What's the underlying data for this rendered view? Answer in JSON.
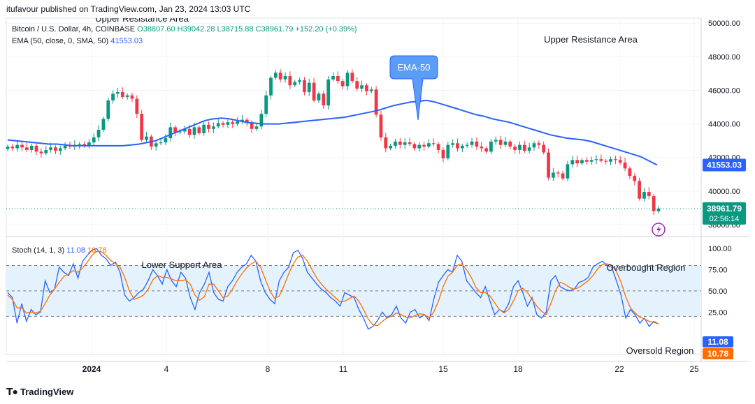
{
  "header": {
    "published": "itufavour published on TradingView.com, Jan 23, 2024 13:03 UTC"
  },
  "price_legend": {
    "symbol": "Bitcoin / U.S. Dollar, 4h, COINBASE",
    "open": "O38807.60",
    "high": "H39042.28",
    "low": "L38715.88",
    "close": "C38961.79",
    "change": "+152.20 (+0.39%)"
  },
  "ema_legend": {
    "label": "EMA (50, close, 0, SMA, 50)",
    "value": "41553.03"
  },
  "stoch_legend": {
    "label": "Stoch (14, 1, 3)",
    "k": "11.08",
    "d": "10.78"
  },
  "annotations": {
    "upper_resistance": "Upper Resistance Area",
    "upper_resistance_top": "Upper Resistance Area",
    "ema_callout": "EMA-50",
    "lower_support": "Lower Support Area",
    "overbought": "Overbought Region",
    "oversold": "Oversold Region"
  },
  "price_labels": {
    "ema": "41553.03",
    "last": "38961.79",
    "countdown": "02:56:14"
  },
  "stoch_labels": {
    "k": "11.08",
    "d": "10.78"
  },
  "footer": {
    "brand": "TradingView"
  },
  "colors": {
    "up": "#089981",
    "down": "#f23645",
    "ema": "#2962ff",
    "k": "#2962ff",
    "d": "#ff6d00",
    "band": "#e3f2fd"
  },
  "chart_data": [
    {
      "type": "candlestick",
      "title": "Bitcoin / U.S. Dollar, 4h, COINBASE",
      "y_ticks": [
        "50000.00",
        "48000.00",
        "46000.00",
        "44000.00",
        "42000.00",
        "40000.00",
        "38000.00"
      ],
      "ylim": [
        37500,
        50300
      ],
      "x_ticks": [
        "2024",
        "4",
        "8",
        "11",
        "15",
        "18",
        "22",
        "25"
      ],
      "candles_close": [
        42650,
        42550,
        42750,
        42600,
        42450,
        42700,
        42350,
        42250,
        42450,
        42600,
        42400,
        42550,
        42700,
        42650,
        42750,
        42800,
        42700,
        42900,
        43200,
        43650,
        44300,
        45400,
        45800,
        45900,
        45600,
        45700,
        45500,
        44600,
        43050,
        43250,
        42650,
        42850,
        42900,
        43150,
        43800,
        43500,
        43550,
        43700,
        43350,
        43800,
        43450,
        43950,
        43700,
        43850,
        44050,
        43950,
        44100,
        44000,
        44150,
        44250,
        44050,
        43700,
        43850,
        44600,
        45700,
        46750,
        47050,
        46650,
        46850,
        46300,
        46500,
        46600,
        45900,
        46450,
        45400,
        45800,
        45100,
        46650,
        46850,
        46550,
        46250,
        47050,
        46550,
        46100,
        46300,
        45950,
        46050,
        44550,
        43200,
        42550,
        42700,
        42950,
        42750,
        42900,
        42800,
        42550,
        42750,
        42650,
        42850,
        42800,
        42450,
        41950,
        42750,
        42850,
        42550,
        42700,
        42750,
        42950,
        42650,
        42550,
        42350,
        42950,
        43050,
        42750,
        42950,
        42650,
        42450,
        42750,
        42400,
        42600,
        42850,
        42750,
        42300,
        40800,
        41100,
        41050,
        40750,
        41600,
        41850,
        41650,
        41850,
        41750,
        41850,
        41900,
        41800,
        41750,
        41900,
        41850,
        41700,
        41350,
        40900,
        40600,
        39550,
        39950,
        39700,
        38800,
        38962
      ],
      "ema_50": [
        43050,
        43000,
        42950,
        42900,
        42850,
        42800,
        42800,
        42750,
        42700,
        42700,
        42700,
        42700,
        42700,
        42700,
        42700,
        42750,
        42800,
        42900,
        43000,
        43200,
        43400,
        43600,
        43800,
        44000,
        44200,
        44300,
        44350,
        44300,
        44200,
        44100,
        44050,
        44000,
        44000,
        44000,
        44050,
        44100,
        44150,
        44200,
        44250,
        44300,
        44350,
        44400,
        44500,
        44600,
        44700,
        44800,
        44950,
        45100,
        45200,
        45300,
        45350,
        45400,
        45300,
        45150,
        45000,
        44850,
        44700,
        44550,
        44450,
        44300,
        44200,
        44100,
        43950,
        43800,
        43650,
        43500,
        43350,
        43250,
        43150,
        43100,
        43050,
        42950,
        42800,
        42650,
        42500,
        42350,
        42200,
        42050,
        41800,
        41553
      ],
      "last_price": 38961.79,
      "ema_last": 41553.03
    },
    {
      "type": "line",
      "title": "Stoch (14, 1, 3)",
      "y_ticks": [
        "100.00",
        "75.00",
        "50.00",
        "25.00"
      ],
      "ylim": [
        -25,
        110
      ],
      "overbought_level": 80,
      "middle_level": 50,
      "oversold_level": 20,
      "series": [
        {
          "name": "%K",
          "values": [
            48,
            42,
            12,
            35,
            14,
            28,
            22,
            25,
            62,
            48,
            52,
            78,
            72,
            68,
            82,
            65,
            85,
            92,
            98,
            100,
            92,
            88,
            80,
            84,
            72,
            45,
            38,
            42,
            48,
            52,
            62,
            75,
            68,
            58,
            75,
            62,
            55,
            72,
            65,
            42,
            28,
            48,
            58,
            72,
            48,
            40,
            38,
            55,
            62,
            72,
            78,
            82,
            92,
            85,
            62,
            48,
            40,
            35,
            62,
            72,
            78,
            95,
            98,
            88,
            72,
            65,
            58,
            52,
            48,
            42,
            38,
            32,
            48,
            45,
            42,
            28,
            18,
            5,
            8,
            15,
            25,
            18,
            22,
            32,
            18,
            12,
            25,
            28,
            18,
            22,
            15,
            40,
            60,
            68,
            75,
            72,
            92,
            85,
            62,
            55,
            48,
            42,
            55,
            38,
            22,
            28,
            25,
            35,
            55,
            62,
            48,
            32,
            42,
            22,
            18,
            25,
            62,
            68,
            55,
            52,
            50,
            52,
            60,
            62,
            66,
            78,
            82,
            85,
            80,
            78,
            62,
            45,
            18,
            28,
            22,
            12,
            18,
            8,
            14,
            11
          ]
        },
        {
          "name": "%D",
          "values": [
            45,
            40,
            30,
            30,
            24,
            25,
            24,
            26,
            35,
            45,
            52,
            60,
            67,
            70,
            74,
            72,
            77,
            84,
            92,
            97,
            96,
            92,
            86,
            82,
            78,
            66,
            50,
            40,
            42,
            45,
            52,
            63,
            68,
            66,
            66,
            64,
            62,
            62,
            63,
            58,
            45,
            39,
            43,
            58,
            58,
            50,
            42,
            44,
            52,
            62,
            70,
            77,
            82,
            85,
            78,
            64,
            50,
            41,
            44,
            56,
            70,
            82,
            90,
            92,
            85,
            75,
            65,
            58,
            52,
            47,
            42,
            37,
            38,
            41,
            44,
            38,
            28,
            17,
            10,
            9,
            14,
            18,
            20,
            24,
            22,
            19,
            18,
            21,
            23,
            22,
            18,
            25,
            38,
            55,
            67,
            72,
            80,
            82,
            75,
            66,
            54,
            48,
            48,
            44,
            36,
            28,
            24,
            28,
            38,
            50,
            53,
            48,
            40,
            32,
            26,
            22,
            35,
            50,
            60,
            58,
            54,
            52,
            54,
            58,
            62,
            68,
            76,
            81,
            82,
            80,
            73,
            60,
            43,
            30,
            24,
            19,
            17,
            14,
            13,
            10.78
          ]
        }
      ],
      "x_ticks": [
        "2024",
        "4",
        "8",
        "11",
        "15",
        "18",
        "22",
        "25"
      ]
    }
  ]
}
